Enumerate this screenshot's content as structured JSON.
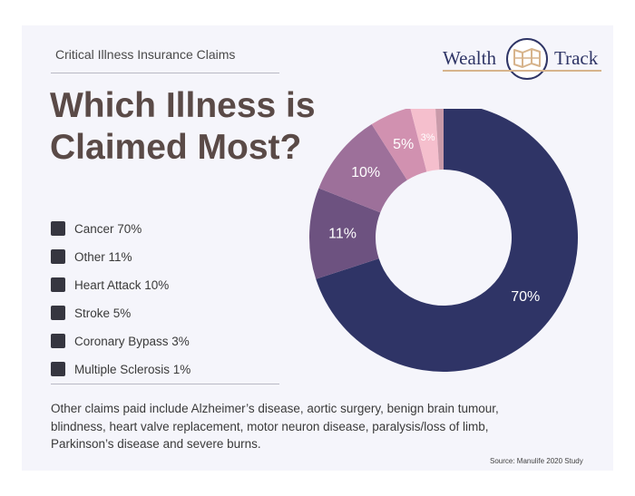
{
  "header": {
    "subtitle": "Critical Illness Insurance Claims",
    "title": "Which Illness is Claimed Most?"
  },
  "logo": {
    "left_text": "Wealth",
    "right_text": "Track",
    "icon": "map-icon"
  },
  "legend": [
    {
      "label": "Cancer 70%"
    },
    {
      "label": "Other 11%"
    },
    {
      "label": "Heart Attack 10%"
    },
    {
      "label": "Stroke 5%"
    },
    {
      "label": "Coronary Bypass 3%"
    },
    {
      "label": "Multiple Sclerosis 1%"
    }
  ],
  "footnote": "Other claims paid include Alzheimer’s disease, aortic surgery, benign brain tumour, blindness, heart valve replacement, motor neuron disease, paralysis/loss of limb, Parkinson’s disease and severe burns.",
  "source": "Source: Manulife 2020 Study",
  "colors": {
    "title": "#5a4a47",
    "brand_navy": "#2f3566",
    "brand_gold": "#d7b48c"
  },
  "chart_data": {
    "type": "pie",
    "donut": true,
    "categories": [
      "Cancer",
      "Other",
      "Heart Attack",
      "Stroke",
      "Coronary Bypass",
      "Multiple Sclerosis"
    ],
    "values": [
      70,
      11,
      10,
      5,
      3,
      1
    ],
    "data_labels": [
      "70%",
      "11%",
      "10%",
      "5%",
      "3%",
      ""
    ],
    "colors": [
      "#2f3466",
      "#6d5280",
      "#9d709a",
      "#d191b0",
      "#f5bfcd",
      "#c99aa9"
    ]
  }
}
